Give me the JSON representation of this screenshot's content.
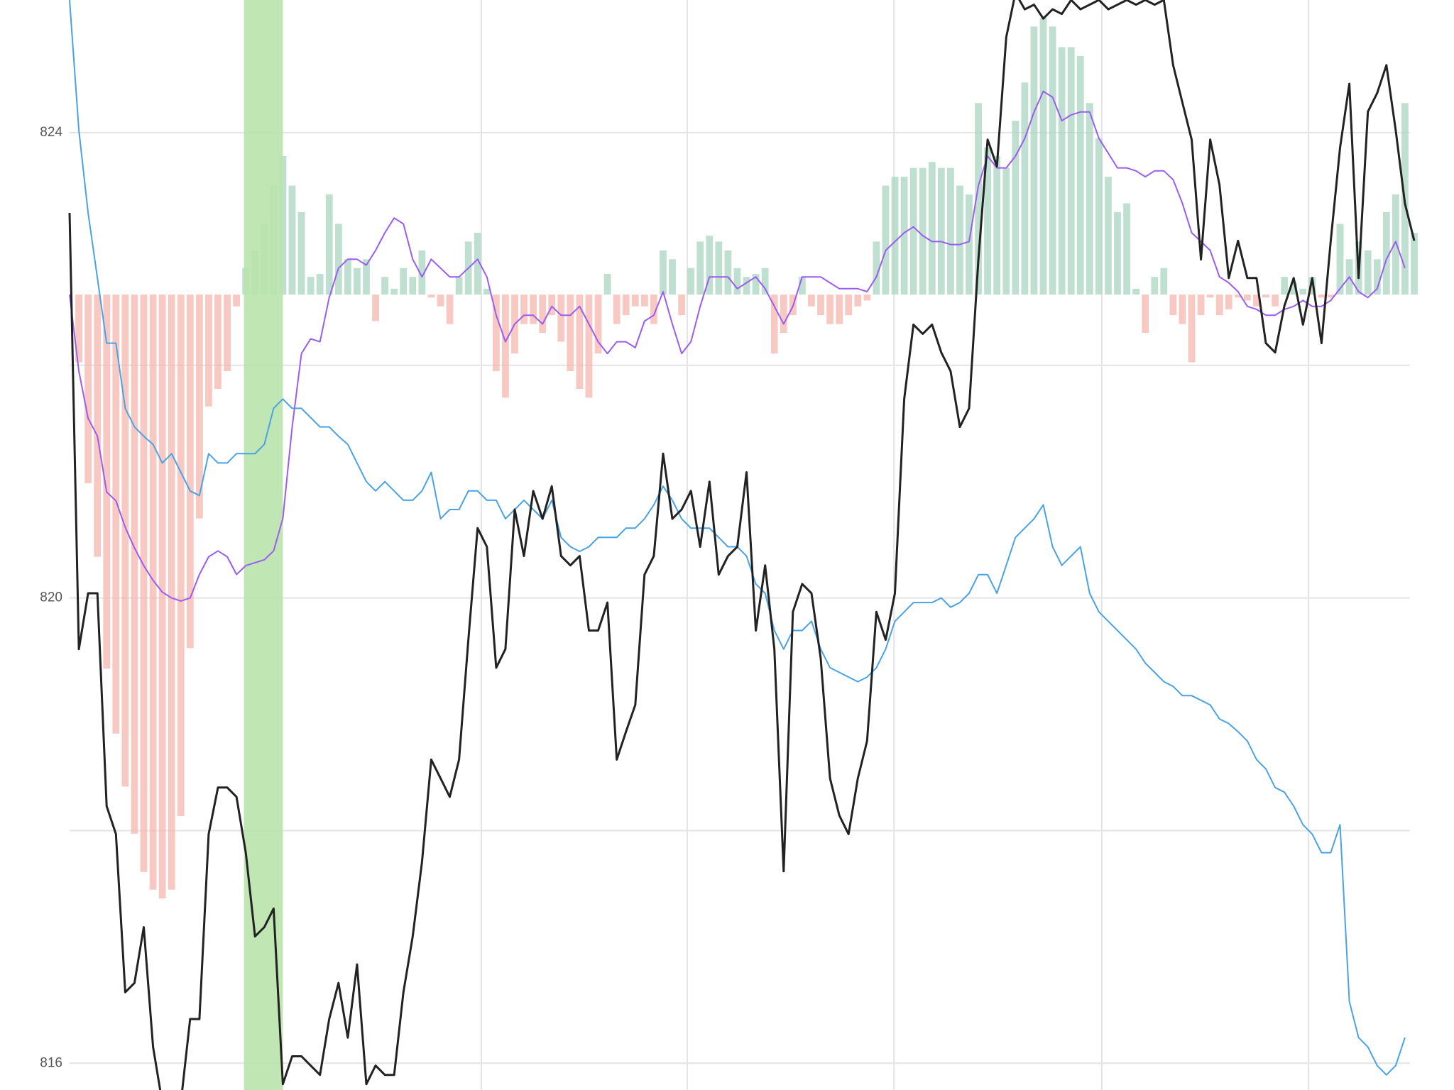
{
  "chart_data": {
    "type": "line",
    "xlim": [
      0,
      145
    ],
    "xgrid": [
      44.4,
      66.6,
      88.9,
      111.3,
      133.6
    ],
    "ylim": [
      815.77,
      825.14
    ],
    "yticks": [
      816,
      820,
      824
    ],
    "ygrid": [
      816,
      818,
      820,
      822,
      824
    ],
    "y2lim": [
      -2.7,
      1
    ],
    "grid": true,
    "highlight": {
      "x": [
        18.8,
        23.0
      ],
      "color": "#b9e3ab"
    },
    "series": [
      {
        "type": "bar",
        "axis": "y2",
        "color": "#f6b5ae",
        "positive_color": "#a9d4c1",
        "values": [
          0.0,
          -0.23,
          -0.64,
          -0.89,
          -1.27,
          -1.49,
          -1.67,
          -1.83,
          -1.96,
          -2.02,
          -2.05,
          -2.02,
          -1.77,
          -1.2,
          -0.76,
          -0.38,
          -0.32,
          -0.26,
          -0.04,
          0.09,
          0.15,
          0.24,
          0.37,
          0.47,
          0.37,
          0.28,
          0.06,
          0.07,
          0.34,
          0.24,
          0.12,
          0.09,
          0.12,
          -0.09,
          0.06,
          0.02,
          0.09,
          0.06,
          0.15,
          -0.01,
          -0.04,
          -0.1,
          0.06,
          0.18,
          0.21,
          0.02,
          -0.26,
          -0.35,
          -0.2,
          -0.1,
          -0.1,
          -0.13,
          -0.07,
          -0.16,
          -0.26,
          -0.32,
          -0.35,
          -0.2,
          0.07,
          -0.1,
          -0.07,
          -0.04,
          -0.04,
          -0.1,
          0.15,
          0.12,
          -0.07,
          0.09,
          0.18,
          0.2,
          0.18,
          0.15,
          0.09,
          0.06,
          0.07,
          0.09,
          -0.2,
          -0.13,
          -0.07,
          0.06,
          -0.04,
          -0.07,
          -0.1,
          -0.1,
          -0.07,
          -0.04,
          -0.02,
          0.18,
          0.37,
          0.4,
          0.4,
          0.43,
          0.43,
          0.45,
          0.43,
          0.43,
          0.37,
          0.34,
          0.65,
          0.5,
          0.47,
          0.43,
          0.59,
          0.72,
          0.91,
          0.94,
          0.91,
          0.84,
          0.84,
          0.81,
          0.65,
          0.53,
          0.4,
          0.28,
          0.31,
          0.02,
          -0.13,
          0.06,
          0.09,
          -0.07,
          -0.1,
          -0.23,
          -0.07,
          -0.01,
          -0.07,
          -0.05,
          -0.01,
          -0.02,
          -0.04,
          -0.01,
          -0.04,
          0.06,
          0.04,
          0.02,
          0.06,
          -0.01,
          -0.01,
          0.24,
          0.12,
          0.18,
          0.15,
          0.12,
          0.28,
          0.34,
          0.65,
          0.21
        ]
      },
      {
        "type": "line",
        "axis": "y2",
        "color": "#9b5cf0",
        "values": [
          0.0,
          -0.26,
          -0.42,
          -0.48,
          -0.67,
          -0.7,
          -0.79,
          -0.86,
          -0.92,
          -0.97,
          -1.01,
          -1.03,
          -1.04,
          -1.03,
          -0.95,
          -0.89,
          -0.87,
          -0.89,
          -0.95,
          -0.92,
          -0.91,
          -0.9,
          -0.87,
          -0.76,
          -0.45,
          -0.2,
          -0.15,
          -0.16,
          -0.01,
          0.09,
          0.12,
          0.12,
          0.1,
          0.15,
          0.21,
          0.26,
          0.24,
          0.12,
          0.06,
          0.12,
          0.09,
          0.06,
          0.06,
          0.09,
          0.12,
          0.06,
          -0.07,
          -0.16,
          -0.1,
          -0.07,
          -0.07,
          -0.1,
          -0.04,
          -0.07,
          -0.07,
          -0.04,
          -0.1,
          -0.16,
          -0.2,
          -0.16,
          -0.16,
          -0.18,
          -0.09,
          -0.07,
          0.01,
          -0.1,
          -0.2,
          -0.16,
          -0.04,
          0.06,
          0.06,
          0.06,
          0.02,
          0.04,
          0.06,
          0.02,
          -0.04,
          -0.1,
          -0.04,
          0.06,
          0.06,
          0.06,
          0.04,
          0.02,
          0.02,
          0.02,
          0.01,
          0.06,
          0.15,
          0.18,
          0.21,
          0.23,
          0.2,
          0.18,
          0.18,
          0.17,
          0.17,
          0.18,
          0.37,
          0.47,
          0.43,
          0.43,
          0.47,
          0.53,
          0.62,
          0.69,
          0.67,
          0.59,
          0.61,
          0.62,
          0.62,
          0.53,
          0.48,
          0.43,
          0.43,
          0.42,
          0.4,
          0.42,
          0.42,
          0.39,
          0.31,
          0.21,
          0.18,
          0.15,
          0.06,
          0.04,
          0.01,
          -0.04,
          -0.05,
          -0.07,
          -0.07,
          -0.05,
          -0.04,
          -0.02,
          -0.04,
          -0.04,
          -0.02,
          0.02,
          0.06,
          0.01,
          -0.01,
          0.02,
          0.12,
          0.18,
          0.09,
          null
        ]
      },
      {
        "type": "line",
        "color": "#4aa2e6",
        "values": [
          825.14,
          824.02,
          823.31,
          822.75,
          822.19,
          822.19,
          821.63,
          821.47,
          821.39,
          821.32,
          821.16,
          821.24,
          821.08,
          820.92,
          820.88,
          821.24,
          821.16,
          821.16,
          821.24,
          821.24,
          821.24,
          821.32,
          821.63,
          821.71,
          821.63,
          821.63,
          821.55,
          821.47,
          821.47,
          821.39,
          821.32,
          821.16,
          821.0,
          820.92,
          821.0,
          820.92,
          820.84,
          820.84,
          820.92,
          821.08,
          820.68,
          820.76,
          820.76,
          820.92,
          820.92,
          820.84,
          820.84,
          820.68,
          820.76,
          820.84,
          820.76,
          820.68,
          820.84,
          820.52,
          820.44,
          820.4,
          820.44,
          820.52,
          820.52,
          820.52,
          820.6,
          820.6,
          820.68,
          820.8,
          820.96,
          820.84,
          820.68,
          820.6,
          820.6,
          820.6,
          820.52,
          820.44,
          820.44,
          820.36,
          820.12,
          820.04,
          819.72,
          819.56,
          819.72,
          819.72,
          819.8,
          819.56,
          819.4,
          819.36,
          819.32,
          819.28,
          819.32,
          819.4,
          819.56,
          819.8,
          819.88,
          819.96,
          819.96,
          819.96,
          820.0,
          819.92,
          819.96,
          820.04,
          820.2,
          820.2,
          820.04,
          820.28,
          820.52,
          820.6,
          820.68,
          820.8,
          820.44,
          820.28,
          820.36,
          820.44,
          820.04,
          819.88,
          819.8,
          819.72,
          819.64,
          819.56,
          819.44,
          819.36,
          819.28,
          819.24,
          819.16,
          819.16,
          819.12,
          819.08,
          818.96,
          818.92,
          818.85,
          818.77,
          818.61,
          818.53,
          818.37,
          818.33,
          818.21,
          818.05,
          817.97,
          817.81,
          817.81,
          818.05,
          816.53,
          816.22,
          816.14,
          815.98,
          815.9,
          815.98,
          816.22,
          null
        ]
      },
      {
        "type": "line",
        "color": "#222222",
        "width": 3,
        "values": [
          823.31,
          819.56,
          820.04,
          820.04,
          818.21,
          817.97,
          816.61,
          816.69,
          817.17,
          816.14,
          815.66,
          815.66,
          815.66,
          816.38,
          816.38,
          817.97,
          818.37,
          818.37,
          818.29,
          817.81,
          817.09,
          817.17,
          817.33,
          815.82,
          816.06,
          816.06,
          815.98,
          815.9,
          816.38,
          816.69,
          816.22,
          816.85,
          815.82,
          815.98,
          815.9,
          815.9,
          816.61,
          817.09,
          817.73,
          818.61,
          818.45,
          818.29,
          818.61,
          819.64,
          820.6,
          820.44,
          819.4,
          819.56,
          820.76,
          820.36,
          820.92,
          820.68,
          820.96,
          820.36,
          820.28,
          820.36,
          819.72,
          819.72,
          819.96,
          818.61,
          818.85,
          819.08,
          820.2,
          820.36,
          821.24,
          820.68,
          820.76,
          820.92,
          820.44,
          821.0,
          820.2,
          820.36,
          820.44,
          821.08,
          819.72,
          820.28,
          819.56,
          817.65,
          819.88,
          820.12,
          820.04,
          819.48,
          818.45,
          818.13,
          817.97,
          818.45,
          818.77,
          819.88,
          819.64,
          820.04,
          821.71,
          822.35,
          822.27,
          822.35,
          822.11,
          821.95,
          821.47,
          821.63,
          822.91,
          823.94,
          823.71,
          824.82,
          825.2,
          825.06,
          825.1,
          824.98,
          825.06,
          825.02,
          825.14,
          825.06,
          825.1,
          825.14,
          825.06,
          825.1,
          825.14,
          825.1,
          825.14,
          825.1,
          825.14,
          824.58,
          824.26,
          823.94,
          822.91,
          823.94,
          823.55,
          822.75,
          823.07,
          822.75,
          822.75,
          822.19,
          822.11,
          822.51,
          822.75,
          822.35,
          822.75,
          822.19,
          823.07,
          823.87,
          824.42,
          822.75,
          824.18,
          824.34,
          824.58,
          824.02,
          823.39,
          823.07
        ]
      }
    ]
  }
}
